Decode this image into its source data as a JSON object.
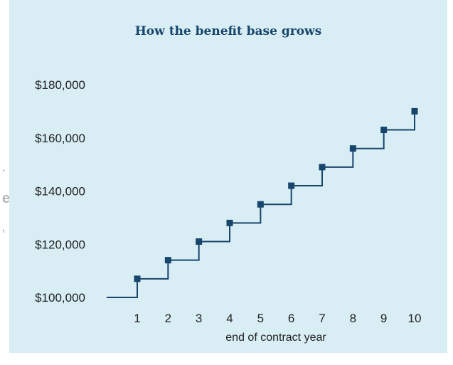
{
  "chart_data": {
    "type": "line",
    "title": "How the benefit base grows",
    "xlabel": "end of contract year",
    "ylabel": "",
    "x": [
      0,
      1,
      2,
      3,
      4,
      5,
      6,
      7,
      8,
      9,
      10
    ],
    "values": [
      100000,
      107000,
      114000,
      121000,
      128000,
      135000,
      142000,
      149000,
      156000,
      163000,
      170000
    ],
    "x_ticks": [
      "1",
      "2",
      "3",
      "4",
      "5",
      "6",
      "7",
      "8",
      "9",
      "10"
    ],
    "y_ticks": [
      "$100,000",
      "$120,000",
      "$140,000",
      "$160,000",
      "$180,000"
    ],
    "y_tick_values": [
      100000,
      120000,
      140000,
      160000,
      180000
    ],
    "ylim": [
      100000,
      180000
    ],
    "grid": false,
    "line_style": "step",
    "marker": "square",
    "colors": {
      "line": "#17456b",
      "marker": "#17456b",
      "background": "#d8edf4",
      "title": "#17456b"
    }
  }
}
